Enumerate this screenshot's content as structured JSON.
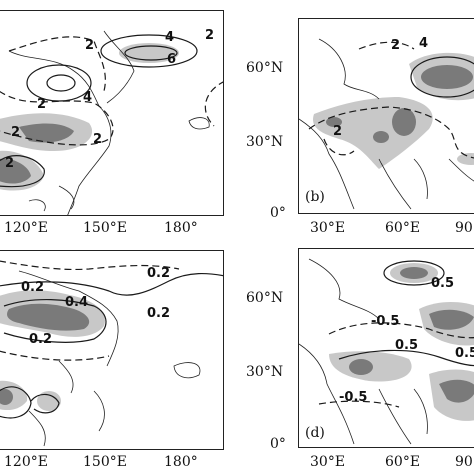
{
  "panels": {
    "a": {
      "x_ticks": [
        "120°E",
        "150°E",
        "180°"
      ],
      "contour_labels": [
        "2",
        "4",
        "6",
        "2",
        "4",
        "2",
        "2",
        "2",
        "2"
      ]
    },
    "b": {
      "label": "(b)",
      "y_ticks": [
        "60°N",
        "30°N",
        "0°"
      ],
      "x_ticks": [
        "30°E",
        "60°E",
        "90"
      ],
      "contour_labels": [
        "2",
        "4",
        "2"
      ]
    },
    "c": {
      "x_ticks": [
        "120°E",
        "150°E",
        "180°"
      ],
      "contour_labels": [
        "0.2",
        "0.2",
        "0.4",
        "0.2",
        "0.2"
      ]
    },
    "d": {
      "label": "(d)",
      "y_ticks": [
        "60°N",
        "30°N",
        "0°"
      ],
      "x_ticks": [
        "30°E",
        "60°E",
        "90"
      ],
      "contour_labels": [
        "0.5",
        "-0.5",
        "0.5",
        "0.5",
        "-0.5"
      ]
    }
  },
  "colors": {
    "shade_light": "#c8c8c8",
    "shade_dark": "#7a7a7a",
    "line": "#1a1a1a"
  }
}
